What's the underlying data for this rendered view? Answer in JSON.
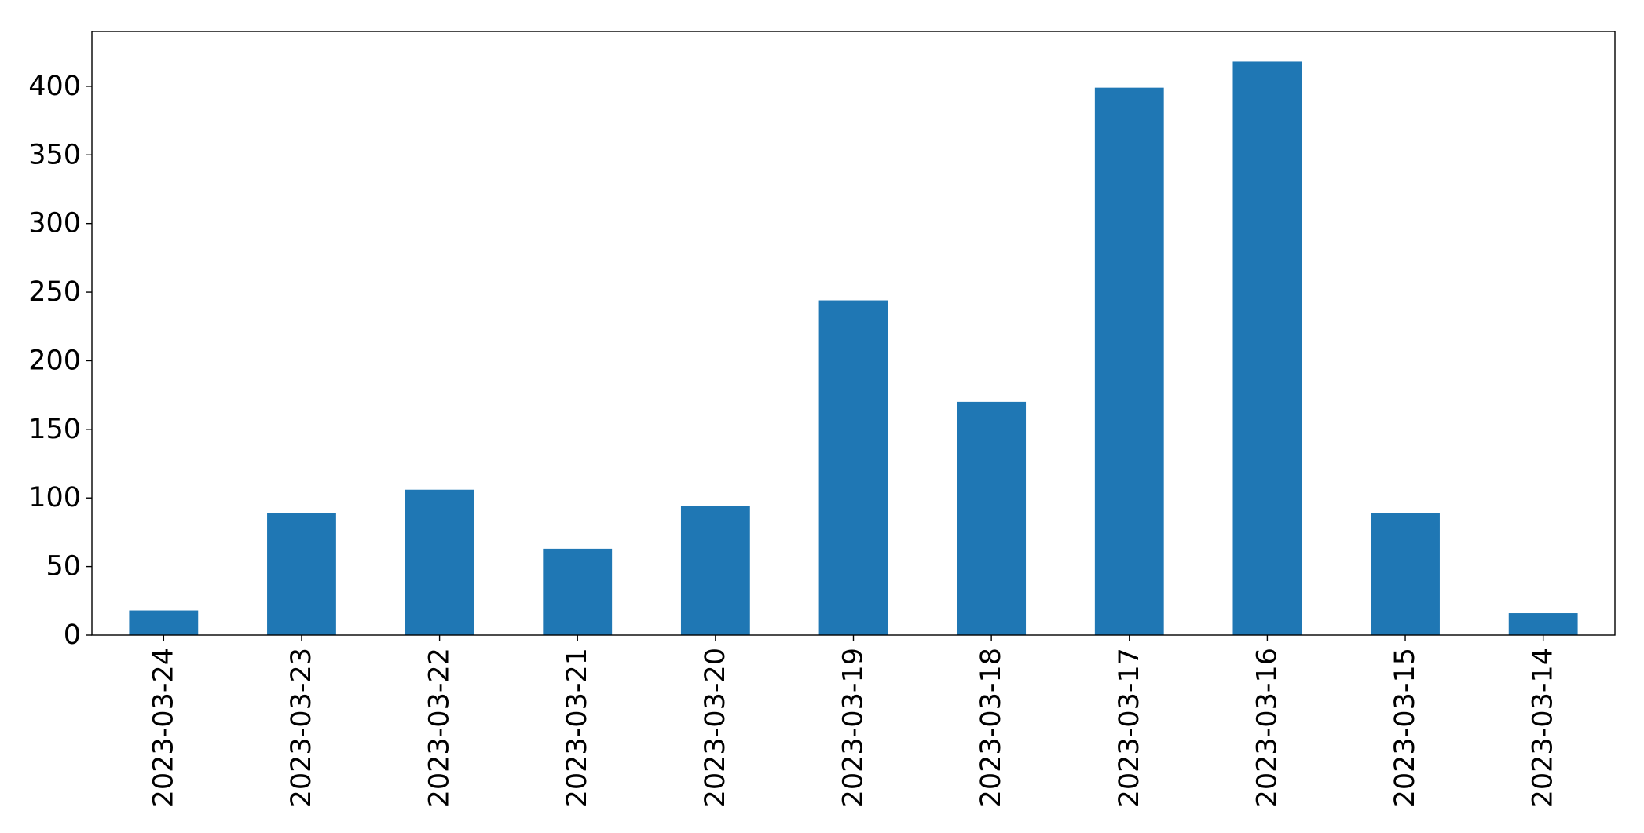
{
  "chart_data": {
    "type": "bar",
    "categories": [
      "2023-03-24",
      "2023-03-23",
      "2023-03-22",
      "2023-03-21",
      "2023-03-20",
      "2023-03-19",
      "2023-03-18",
      "2023-03-17",
      "2023-03-16",
      "2023-03-15",
      "2023-03-14"
    ],
    "values": [
      18,
      89,
      106,
      63,
      94,
      244,
      170,
      399,
      418,
      89,
      16
    ],
    "title": "",
    "xlabel": "",
    "ylabel": "",
    "ylim": [
      0,
      440
    ],
    "yticks": [
      0,
      50,
      100,
      150,
      200,
      250,
      300,
      350,
      400
    ],
    "bar_color": "#1f77b4",
    "grid": false,
    "legend": "none",
    "xtick_rotation": "vertical"
  }
}
